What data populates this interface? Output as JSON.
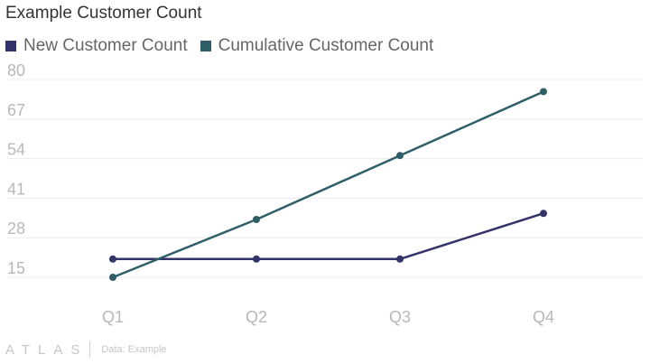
{
  "chart_data": {
    "type": "line",
    "title": "Example Customer Count",
    "categories": [
      "Q1",
      "Q2",
      "Q3",
      "Q4"
    ],
    "series": [
      {
        "name": "New Customer Count",
        "color": "#33336a",
        "values": [
          21,
          21,
          21,
          36
        ]
      },
      {
        "name": "Cumulative Customer Count",
        "color": "#2f5f66",
        "values": [
          15,
          34,
          55,
          76
        ]
      }
    ],
    "yticks": [
      15,
      28,
      41,
      54,
      67,
      80
    ],
    "ylim": [
      15,
      80
    ],
    "grid": true,
    "legend": "top-left"
  },
  "footer": {
    "brand": "ATLAS",
    "source": "Data: Example"
  }
}
